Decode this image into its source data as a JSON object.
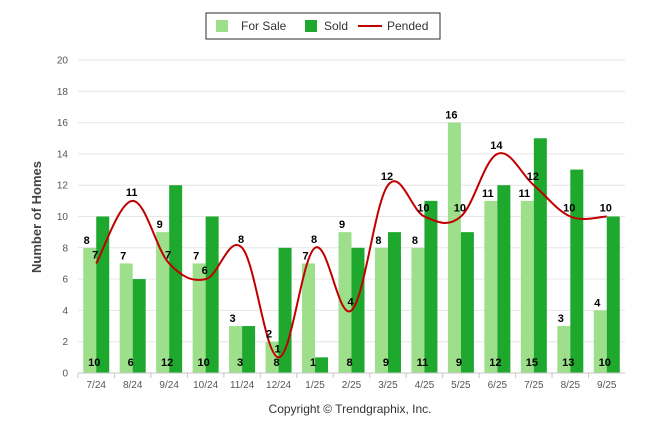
{
  "chart_data": {
    "type": "bar",
    "title": "",
    "xlabel": "",
    "ylabel": "Number of Homes",
    "ylim": [
      0,
      20
    ],
    "yticks": [
      0,
      2,
      4,
      6,
      8,
      10,
      12,
      14,
      16,
      18,
      20
    ],
    "grid": true,
    "legend_position": "top-center",
    "categories": [
      "7/24",
      "8/24",
      "9/24",
      "10/24",
      "11/24",
      "12/24",
      "1/25",
      "2/25",
      "3/25",
      "4/25",
      "5/25",
      "6/25",
      "7/25",
      "8/25",
      "9/25"
    ],
    "series": [
      {
        "name": "For Sale",
        "kind": "bar",
        "color": "#9ddf8a",
        "values": [
          8,
          7,
          9,
          7,
          3,
          2,
          7,
          9,
          8,
          8,
          16,
          11,
          11,
          3,
          4
        ]
      },
      {
        "name": "Sold",
        "kind": "bar",
        "color": "#1fa82e",
        "values": [
          10,
          6,
          12,
          10,
          3,
          8,
          1,
          8,
          9,
          11,
          9,
          12,
          15,
          13,
          10
        ]
      },
      {
        "name": "Pended",
        "kind": "line",
        "color": "#c00000",
        "values": [
          7,
          11,
          7,
          6,
          8,
          1,
          8,
          4,
          12,
          10,
          10,
          14,
          12,
          10,
          10
        ]
      }
    ],
    "credit": "Copyright © Trendgraphix, Inc."
  }
}
